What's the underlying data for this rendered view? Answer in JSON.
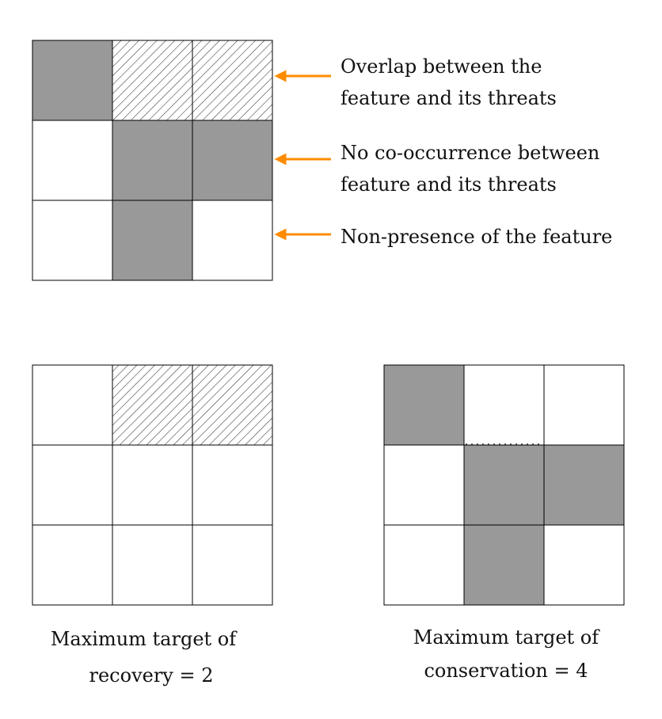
{
  "colors": {
    "feature_fill": "#999999",
    "threat_hatch": "#333333",
    "arrow": "#ff8c00",
    "grid_line": "#000000"
  },
  "grids": {
    "top": {
      "cells": [
        [
          "feature",
          "threat",
          "threat"
        ],
        [
          "empty",
          "feature",
          "feature"
        ],
        [
          "empty",
          "feature",
          "empty"
        ]
      ]
    },
    "recovery": {
      "cells": [
        [
          "empty",
          "threat",
          "threat"
        ],
        [
          "empty",
          "empty",
          "empty"
        ],
        [
          "empty",
          "empty",
          "empty"
        ]
      ]
    },
    "conservation": {
      "cells": [
        [
          "feature",
          "empty",
          "empty"
        ],
        [
          "empty",
          "feature",
          "feature"
        ],
        [
          "empty",
          "feature",
          "empty"
        ]
      ]
    }
  },
  "annotations": [
    {
      "line1": "Overlap between the",
      "line2": "feature and its threats"
    },
    {
      "line1": "No co-occurrence between",
      "line2": "feature and its threats"
    },
    {
      "line1": "Non-presence of the feature",
      "line2": ""
    }
  ],
  "captions": {
    "recovery": {
      "line1": "Maximum target of",
      "line2": "recovery = 2"
    },
    "conservation": {
      "line1": "Maximum target of",
      "line2": "conservation = 4"
    }
  }
}
